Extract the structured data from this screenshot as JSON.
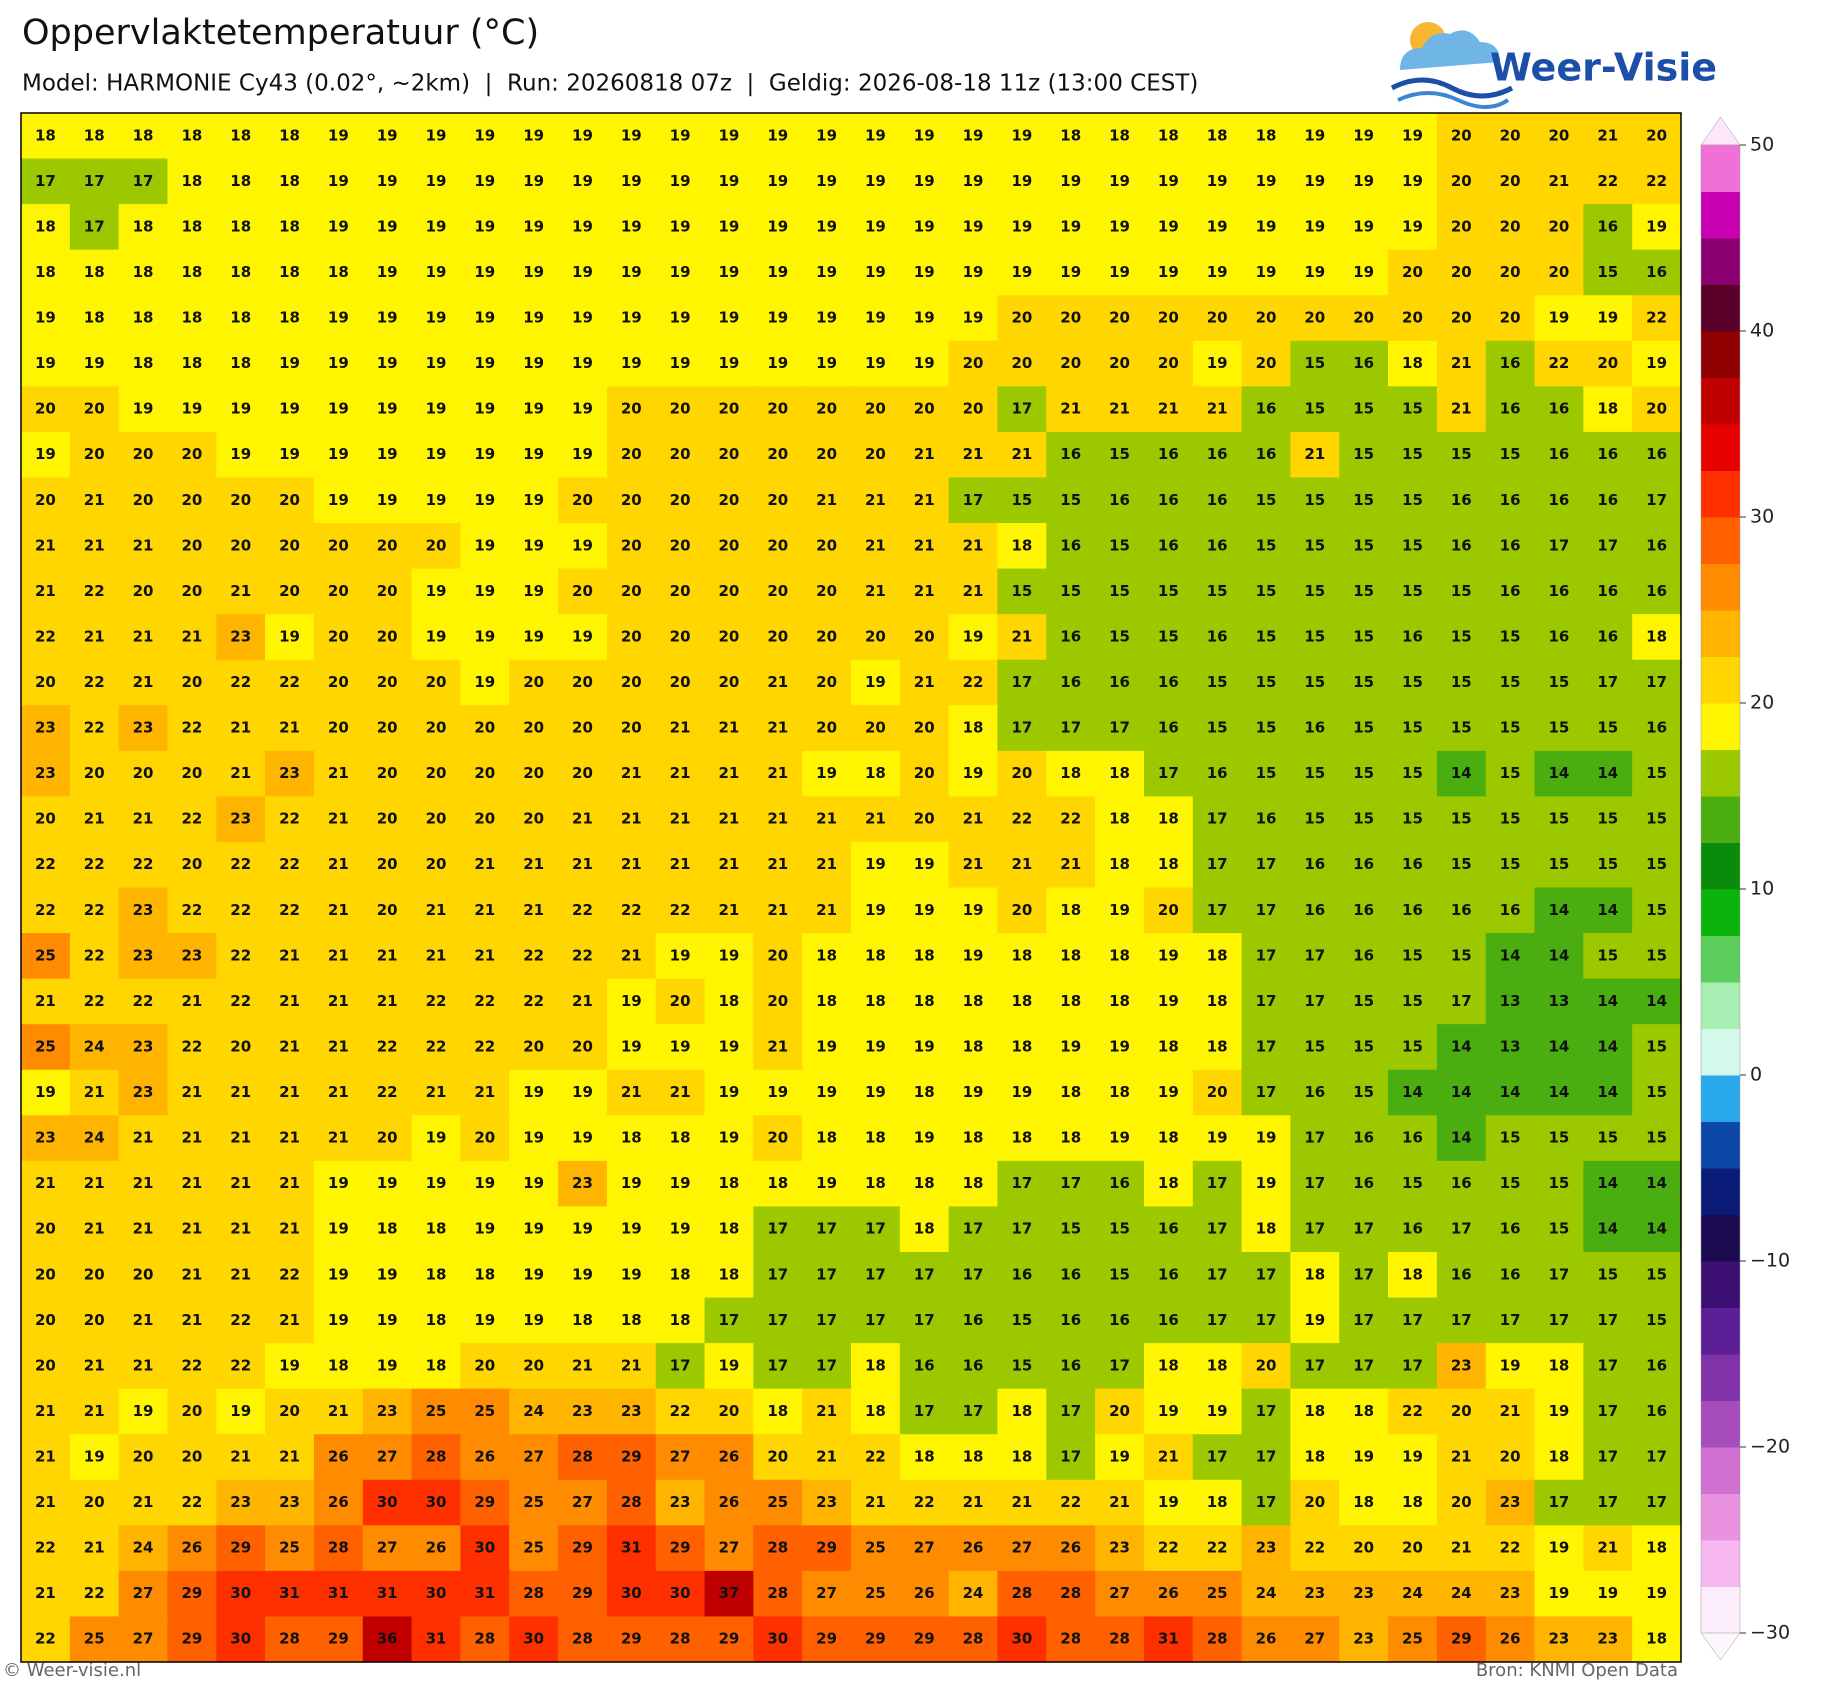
{
  "header": {
    "title": "Oppervlaktetemperatuur (°C)",
    "subtitle": "Model: HARMONIE Cy43 (0.02°, ~2km)  |  Run: 20260818 07z  |  Geldig: 2026-08-18 11z (13:00 CEST)",
    "logo": "Weer-Visie"
  },
  "map": {
    "grid": [
      [
        18,
        18,
        18,
        18,
        18,
        18,
        19,
        19,
        19,
        19,
        19,
        19,
        19,
        19,
        19,
        19,
        19,
        19,
        19,
        19,
        19,
        18,
        18,
        18,
        18,
        18,
        19,
        19,
        19,
        20,
        20,
        20,
        21,
        20
      ],
      [
        17,
        17,
        17,
        18,
        18,
        18,
        19,
        19,
        19,
        19,
        19,
        19,
        19,
        19,
        19,
        19,
        19,
        19,
        19,
        19,
        19,
        19,
        19,
        19,
        19,
        19,
        19,
        19,
        19,
        20,
        20,
        21,
        22,
        22
      ],
      [
        18,
        17,
        18,
        18,
        18,
        18,
        19,
        19,
        19,
        19,
        19,
        19,
        19,
        19,
        19,
        19,
        19,
        19,
        19,
        19,
        19,
        19,
        19,
        19,
        19,
        19,
        19,
        19,
        19,
        20,
        20,
        20,
        16,
        19
      ],
      [
        18,
        18,
        18,
        18,
        18,
        18,
        18,
        19,
        19,
        19,
        19,
        19,
        19,
        19,
        19,
        19,
        19,
        19,
        19,
        19,
        19,
        19,
        19,
        19,
        19,
        19,
        19,
        19,
        20,
        20,
        20,
        20,
        15,
        16
      ],
      [
        19,
        18,
        18,
        18,
        18,
        18,
        19,
        19,
        19,
        19,
        19,
        19,
        19,
        19,
        19,
        19,
        19,
        19,
        19,
        19,
        20,
        20,
        20,
        20,
        20,
        20,
        20,
        20,
        20,
        20,
        20,
        19,
        19,
        22
      ],
      [
        19,
        19,
        18,
        18,
        18,
        19,
        19,
        19,
        19,
        19,
        19,
        19,
        19,
        19,
        19,
        19,
        19,
        19,
        19,
        20,
        20,
        20,
        20,
        20,
        19,
        20,
        15,
        16,
        18,
        21,
        16,
        22,
        20,
        19
      ],
      [
        20,
        20,
        19,
        19,
        19,
        19,
        19,
        19,
        19,
        19,
        19,
        19,
        20,
        20,
        20,
        20,
        20,
        20,
        20,
        20,
        17,
        21,
        21,
        21,
        21,
        16,
        15,
        15,
        15,
        21,
        16,
        16,
        18,
        20
      ],
      [
        19,
        20,
        20,
        20,
        19,
        19,
        19,
        19,
        19,
        19,
        19,
        19,
        20,
        20,
        20,
        20,
        20,
        20,
        21,
        21,
        21,
        16,
        15,
        16,
        16,
        16,
        21,
        15,
        15,
        15,
        15,
        16,
        16,
        16
      ],
      [
        20,
        21,
        20,
        20,
        20,
        20,
        19,
        19,
        19,
        19,
        19,
        20,
        20,
        20,
        20,
        20,
        21,
        21,
        21,
        17,
        15,
        15,
        16,
        16,
        16,
        15,
        15,
        15,
        15,
        16,
        16,
        16,
        16,
        17
      ],
      [
        21,
        21,
        21,
        20,
        20,
        20,
        20,
        20,
        20,
        19,
        19,
        19,
        20,
        20,
        20,
        20,
        20,
        21,
        21,
        21,
        18,
        16,
        15,
        16,
        16,
        15,
        15,
        15,
        15,
        16,
        16,
        17,
        17,
        16
      ],
      [
        21,
        22,
        20,
        20,
        21,
        20,
        20,
        20,
        19,
        19,
        19,
        20,
        20,
        20,
        20,
        20,
        20,
        21,
        21,
        21,
        15,
        15,
        15,
        15,
        15,
        15,
        15,
        15,
        15,
        15,
        16,
        16,
        16,
        16
      ],
      [
        22,
        21,
        21,
        21,
        23,
        19,
        20,
        20,
        19,
        19,
        19,
        19,
        20,
        20,
        20,
        20,
        20,
        20,
        20,
        19,
        21,
        16,
        15,
        15,
        16,
        15,
        15,
        15,
        16,
        15,
        15,
        16,
        16,
        18
      ],
      [
        20,
        22,
        21,
        20,
        22,
        22,
        20,
        20,
        20,
        19,
        20,
        20,
        20,
        20,
        20,
        21,
        20,
        19,
        21,
        22,
        17,
        16,
        16,
        16,
        15,
        15,
        15,
        15,
        15,
        15,
        15,
        15,
        17,
        17
      ],
      [
        23,
        22,
        23,
        22,
        21,
        21,
        20,
        20,
        20,
        20,
        20,
        20,
        20,
        21,
        21,
        21,
        20,
        20,
        20,
        18,
        17,
        17,
        17,
        16,
        15,
        15,
        16,
        15,
        15,
        15,
        15,
        15,
        15,
        16
      ],
      [
        23,
        20,
        20,
        20,
        21,
        23,
        21,
        20,
        20,
        20,
        20,
        20,
        21,
        21,
        21,
        21,
        19,
        18,
        20,
        19,
        20,
        18,
        18,
        17,
        16,
        15,
        15,
        15,
        15,
        14,
        15,
        14,
        14,
        15
      ],
      [
        20,
        21,
        21,
        22,
        23,
        22,
        21,
        20,
        20,
        20,
        20,
        21,
        21,
        21,
        21,
        21,
        21,
        21,
        20,
        21,
        22,
        22,
        18,
        18,
        17,
        16,
        15,
        15,
        15,
        15,
        15,
        15,
        15,
        15
      ],
      [
        22,
        22,
        22,
        20,
        22,
        22,
        21,
        20,
        20,
        21,
        21,
        21,
        21,
        21,
        21,
        21,
        21,
        19,
        19,
        21,
        21,
        21,
        18,
        18,
        17,
        17,
        16,
        16,
        16,
        15,
        15,
        15,
        15,
        15
      ],
      [
        22,
        22,
        23,
        22,
        22,
        22,
        21,
        20,
        21,
        21,
        21,
        22,
        22,
        22,
        21,
        21,
        21,
        19,
        19,
        19,
        20,
        18,
        19,
        20,
        17,
        17,
        16,
        16,
        16,
        16,
        16,
        14,
        14,
        15
      ],
      [
        25,
        22,
        23,
        23,
        22,
        21,
        21,
        21,
        21,
        21,
        22,
        22,
        21,
        19,
        19,
        20,
        18,
        18,
        18,
        19,
        18,
        18,
        18,
        19,
        18,
        17,
        17,
        16,
        15,
        15,
        14,
        14,
        15,
        15
      ],
      [
        21,
        22,
        22,
        21,
        22,
        21,
        21,
        21,
        22,
        22,
        22,
        21,
        19,
        20,
        18,
        20,
        18,
        18,
        18,
        18,
        18,
        18,
        18,
        19,
        18,
        17,
        17,
        15,
        15,
        17,
        13,
        13,
        14,
        14
      ],
      [
        25,
        24,
        23,
        22,
        20,
        21,
        21,
        22,
        22,
        22,
        20,
        20,
        19,
        19,
        19,
        21,
        19,
        19,
        19,
        18,
        18,
        19,
        19,
        18,
        18,
        17,
        15,
        15,
        15,
        14,
        13,
        14,
        14,
        15
      ],
      [
        19,
        21,
        23,
        21,
        21,
        21,
        21,
        22,
        21,
        21,
        19,
        19,
        21,
        21,
        19,
        19,
        19,
        19,
        18,
        19,
        19,
        18,
        18,
        19,
        20,
        17,
        16,
        15,
        14,
        14,
        14,
        14,
        14,
        15
      ],
      [
        23,
        24,
        21,
        21,
        21,
        21,
        21,
        20,
        19,
        20,
        19,
        19,
        18,
        18,
        19,
        20,
        18,
        18,
        19,
        18,
        18,
        18,
        19,
        18,
        19,
        19,
        17,
        16,
        16,
        14,
        15,
        15,
        15,
        15
      ],
      [
        21,
        21,
        21,
        21,
        21,
        21,
        19,
        19,
        19,
        19,
        19,
        23,
        19,
        19,
        18,
        18,
        19,
        18,
        18,
        18,
        17,
        17,
        16,
        18,
        17,
        19,
        17,
        16,
        15,
        16,
        15,
        15,
        14,
        14
      ],
      [
        20,
        21,
        21,
        21,
        21,
        21,
        19,
        18,
        18,
        19,
        19,
        19,
        19,
        19,
        18,
        17,
        17,
        17,
        18,
        17,
        17,
        15,
        15,
        16,
        17,
        18,
        17,
        17,
        16,
        17,
        16,
        15,
        14,
        14
      ],
      [
        20,
        20,
        20,
        21,
        21,
        22,
        19,
        19,
        18,
        18,
        19,
        19,
        19,
        18,
        18,
        17,
        17,
        17,
        17,
        17,
        16,
        16,
        15,
        16,
        17,
        17,
        18,
        17,
        18,
        16,
        16,
        17,
        15,
        15
      ],
      [
        20,
        20,
        21,
        21,
        22,
        21,
        19,
        19,
        18,
        19,
        19,
        18,
        18,
        18,
        17,
        17,
        17,
        17,
        17,
        16,
        15,
        16,
        16,
        16,
        17,
        17,
        19,
        17,
        17,
        17,
        17,
        17,
        17,
        15
      ],
      [
        20,
        21,
        21,
        22,
        22,
        19,
        18,
        19,
        18,
        20,
        20,
        21,
        21,
        17,
        19,
        17,
        17,
        18,
        16,
        16,
        15,
        16,
        17,
        18,
        18,
        20,
        17,
        17,
        17,
        23,
        19,
        18,
        17,
        16
      ],
      [
        21,
        21,
        19,
        20,
        19,
        20,
        21,
        23,
        25,
        25,
        24,
        23,
        23,
        22,
        20,
        18,
        21,
        18,
        17,
        17,
        18,
        17,
        20,
        19,
        19,
        17,
        18,
        18,
        22,
        20,
        21,
        19,
        17,
        16
      ],
      [
        21,
        19,
        20,
        20,
        21,
        21,
        26,
        27,
        28,
        26,
        27,
        28,
        29,
        27,
        26,
        20,
        21,
        22,
        18,
        18,
        18,
        17,
        19,
        21,
        17,
        17,
        18,
        19,
        19,
        21,
        20,
        18,
        17,
        17
      ],
      [
        21,
        20,
        21,
        22,
        23,
        23,
        26,
        30,
        30,
        29,
        25,
        27,
        28,
        23,
        26,
        25,
        23,
        21,
        22,
        21,
        21,
        22,
        21,
        19,
        18,
        17,
        20,
        18,
        18,
        20,
        23,
        17,
        17,
        17
      ],
      [
        22,
        21,
        24,
        26,
        29,
        25,
        28,
        27,
        26,
        30,
        25,
        29,
        31,
        29,
        27,
        28,
        29,
        25,
        27,
        26,
        27,
        26,
        23,
        22,
        22,
        23,
        22,
        20,
        20,
        21,
        22,
        19,
        21,
        18
      ],
      [
        21,
        22,
        27,
        29,
        30,
        31,
        31,
        31,
        30,
        31,
        28,
        29,
        30,
        30,
        37,
        28,
        27,
        25,
        26,
        24,
        28,
        28,
        27,
        26,
        25,
        24,
        23,
        23,
        24,
        24,
        23,
        19,
        19,
        19
      ],
      [
        22,
        25,
        27,
        29,
        30,
        28,
        29,
        36,
        31,
        28,
        30,
        28,
        29,
        28,
        29,
        30,
        29,
        29,
        29,
        28,
        30,
        28,
        28,
        31,
        28,
        26,
        27,
        23,
        25,
        29,
        26,
        23,
        23,
        18
      ]
    ],
    "colorbar": {
      "lim": [
        -30,
        50
      ],
      "colors": [
        "#fdeefb",
        "#f6b8ee",
        "#e892e0",
        "#d06fd0",
        "#a64dbb",
        "#8033a8",
        "#5c1e96",
        "#3c0f72",
        "#1b0a4f",
        "#0a1c78",
        "#0b48a8",
        "#2aa8ec",
        "#d2f9ea",
        "#a6eeb2",
        "#5ccc5c",
        "#0ab40a",
        "#0a8c0a",
        "#4aae10",
        "#9cc800",
        "#fff500",
        "#ffd600",
        "#ffb400",
        "#ff8c00",
        "#ff6000",
        "#ff3000",
        "#e80000",
        "#c00000",
        "#900000",
        "#5a0028",
        "#8a0070",
        "#c800b0",
        "#f070d8"
      ],
      "ticks": [
        {
          "value": -30,
          "label": "−30"
        },
        {
          "value": -20,
          "label": "−20"
        },
        {
          "value": -10,
          "label": "−10"
        },
        0,
        10,
        20,
        30,
        40,
        50
      ]
    }
  },
  "footer": {
    "left": "© Weer-visie.nl",
    "right": "Bron: KNMI Open Data"
  }
}
